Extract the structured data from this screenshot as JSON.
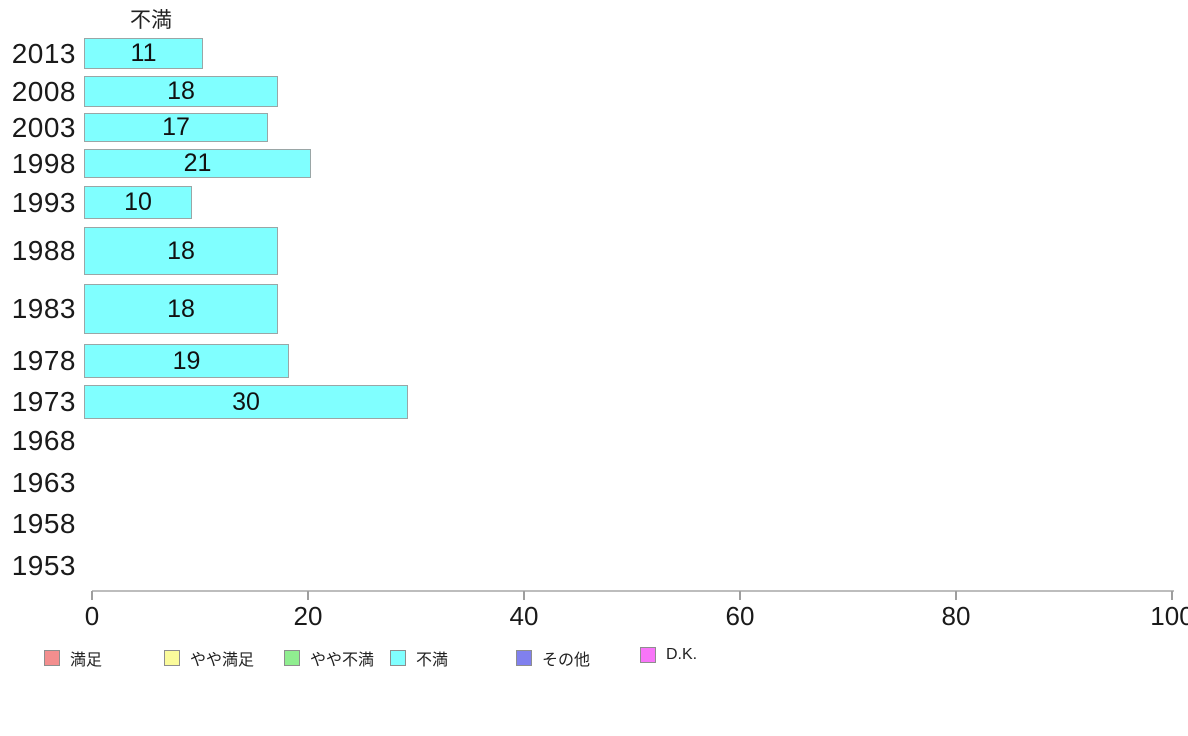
{
  "chart_data": {
    "type": "bar",
    "orientation": "horizontal",
    "title": "不満",
    "categories": [
      "2013",
      "2008",
      "2003",
      "1998",
      "1993",
      "1988",
      "1983",
      "1978",
      "1973",
      "1968",
      "1963",
      "1958",
      "1953"
    ],
    "values": [
      11,
      18,
      17,
      21,
      10,
      18,
      18,
      19,
      30,
      null,
      null,
      null,
      null
    ],
    "xlabel": "",
    "ylabel": "",
    "xlim": [
      0,
      100
    ],
    "xticks": [
      0,
      20,
      40,
      60,
      80,
      100
    ],
    "grid": false,
    "bar_fill": "#80ffff",
    "bar_border": "#9aa6a6",
    "value_labels_inside_bars": true,
    "legend_position": "bottom",
    "legend": [
      {
        "label": "満足",
        "color": "#f38e8e"
      },
      {
        "label": "やや満足",
        "color": "#fbfb9b"
      },
      {
        "label": "やや不満",
        "color": "#90ee90"
      },
      {
        "label": "不満",
        "color": "#80ffff"
      },
      {
        "label": "その他",
        "color": "#8080ee"
      },
      {
        "label": "D.K.",
        "color": "#f875f8"
      }
    ]
  }
}
